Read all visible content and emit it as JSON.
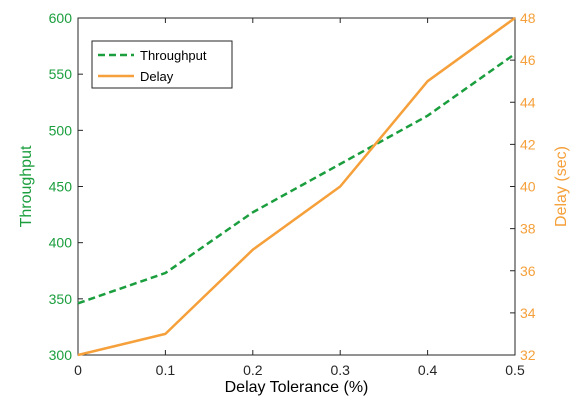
{
  "chart_data": {
    "type": "line",
    "x": [
      0,
      0.1,
      0.2,
      0.3,
      0.4,
      0.5
    ],
    "xlabel": "Delay Tolerance (%)",
    "xlim": [
      0,
      0.5
    ],
    "xticks": [
      "0",
      "0.1",
      "0.2",
      "0.3",
      "0.4",
      "0.5"
    ],
    "axes": {
      "left": {
        "label": "Throughput",
        "lim": [
          300,
          600
        ],
        "ticks": [
          "300",
          "350",
          "400",
          "450",
          "500",
          "550",
          "600"
        ],
        "color": "#1b9e3e"
      },
      "right": {
        "label": "Delay (sec)",
        "lim": [
          32,
          48
        ],
        "ticks": [
          "32",
          "34",
          "36",
          "38",
          "40",
          "42",
          "44",
          "46",
          "48"
        ],
        "color": "#f5a03a"
      }
    },
    "series": [
      {
        "name": "Throughput",
        "axis": "left",
        "style": "dashed",
        "color": "#1b9e3e",
        "values": [
          346,
          373,
          427,
          470,
          513,
          568
        ]
      },
      {
        "name": "Delay",
        "axis": "right",
        "style": "solid",
        "color": "#f5a03a",
        "values": [
          32,
          33,
          37,
          40,
          45,
          48
        ]
      }
    ],
    "legend": "top-left",
    "grid": false
  }
}
